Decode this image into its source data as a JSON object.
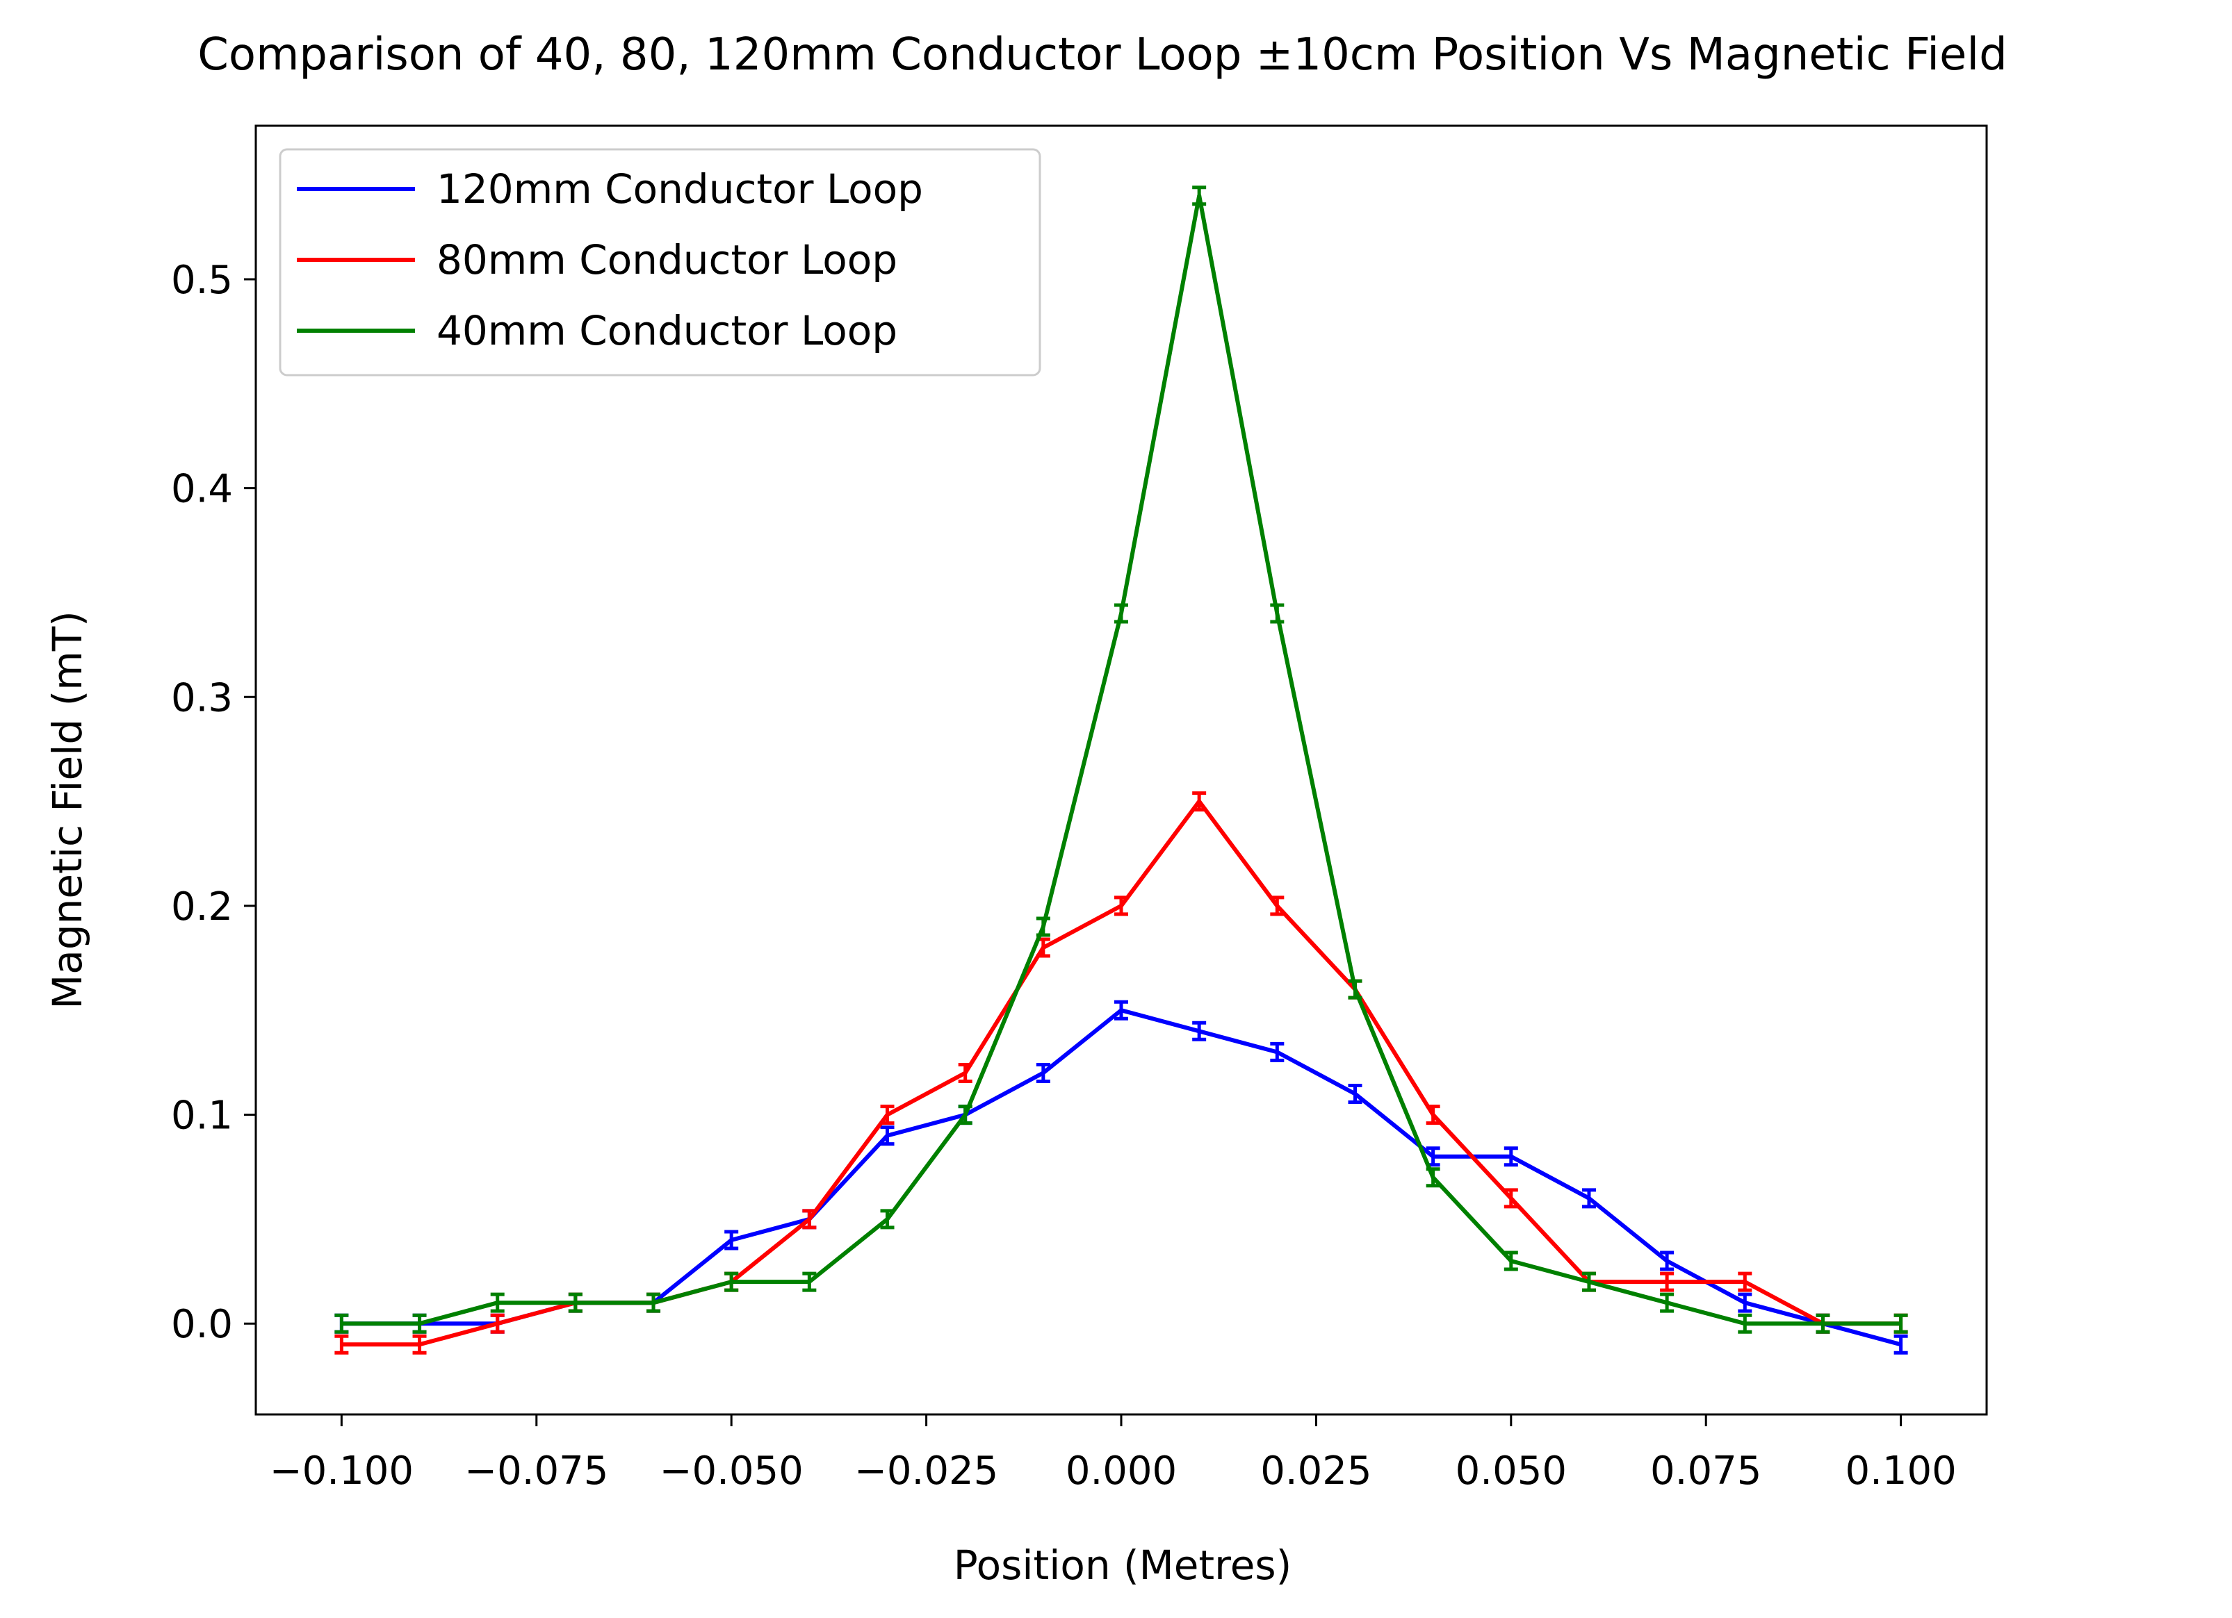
{
  "chart_data": {
    "type": "line",
    "title": "Comparison of 40, 80, 120mm Conductor Loop ±10cm Position Vs Magnetic Field",
    "xlabel": "Position (Metres)",
    "ylabel": "Magnetic Field (mT)",
    "xlim": [
      -0.111,
      0.111
    ],
    "ylim": [
      -0.0435,
      0.5735
    ],
    "xticks": [
      -0.1,
      -0.075,
      -0.05,
      -0.025,
      0.0,
      0.025,
      0.05,
      0.075,
      0.1
    ],
    "xtick_labels": [
      "−0.100",
      "−0.075",
      "−0.050",
      "−0.025",
      "0.000",
      "0.025",
      "0.050",
      "0.075",
      "0.100"
    ],
    "yticks": [
      0.0,
      0.1,
      0.2,
      0.3,
      0.4,
      0.5
    ],
    "ytick_labels": [
      "0.0",
      "0.1",
      "0.2",
      "0.3",
      "0.4",
      "0.5"
    ],
    "grid": false,
    "legend_position": "upper-left",
    "x": [
      -0.1,
      -0.09,
      -0.08,
      -0.07,
      -0.06,
      -0.05,
      -0.04,
      -0.03,
      -0.02,
      -0.01,
      0.0,
      0.01,
      0.02,
      0.03,
      0.04,
      0.05,
      0.06,
      0.07,
      0.08,
      0.09,
      0.1
    ],
    "series": [
      {
        "name": "120mm Conductor Loop",
        "color": "#0000ff",
        "values": [
          0.0,
          0.0,
          0.0,
          0.01,
          0.01,
          0.04,
          0.05,
          0.09,
          0.1,
          0.12,
          0.15,
          0.14,
          0.13,
          0.11,
          0.08,
          0.08,
          0.06,
          0.03,
          0.01,
          0.0,
          -0.01
        ]
      },
      {
        "name": "80mm Conductor Loop",
        "color": "#ff0000",
        "values": [
          -0.01,
          -0.01,
          0.0,
          0.01,
          0.01,
          0.02,
          0.05,
          0.1,
          0.12,
          0.18,
          0.2,
          0.25,
          0.2,
          0.16,
          0.1,
          0.06,
          0.02,
          0.02,
          0.02,
          0.0,
          0.0
        ]
      },
      {
        "name": "40mm Conductor Loop",
        "color": "#008000",
        "values": [
          0.0,
          0.0,
          0.01,
          0.01,
          0.01,
          0.02,
          0.02,
          0.05,
          0.1,
          0.19,
          0.34,
          0.54,
          0.34,
          0.16,
          0.07,
          0.03,
          0.02,
          0.01,
          0.0,
          0.0,
          0.0
        ]
      }
    ]
  }
}
